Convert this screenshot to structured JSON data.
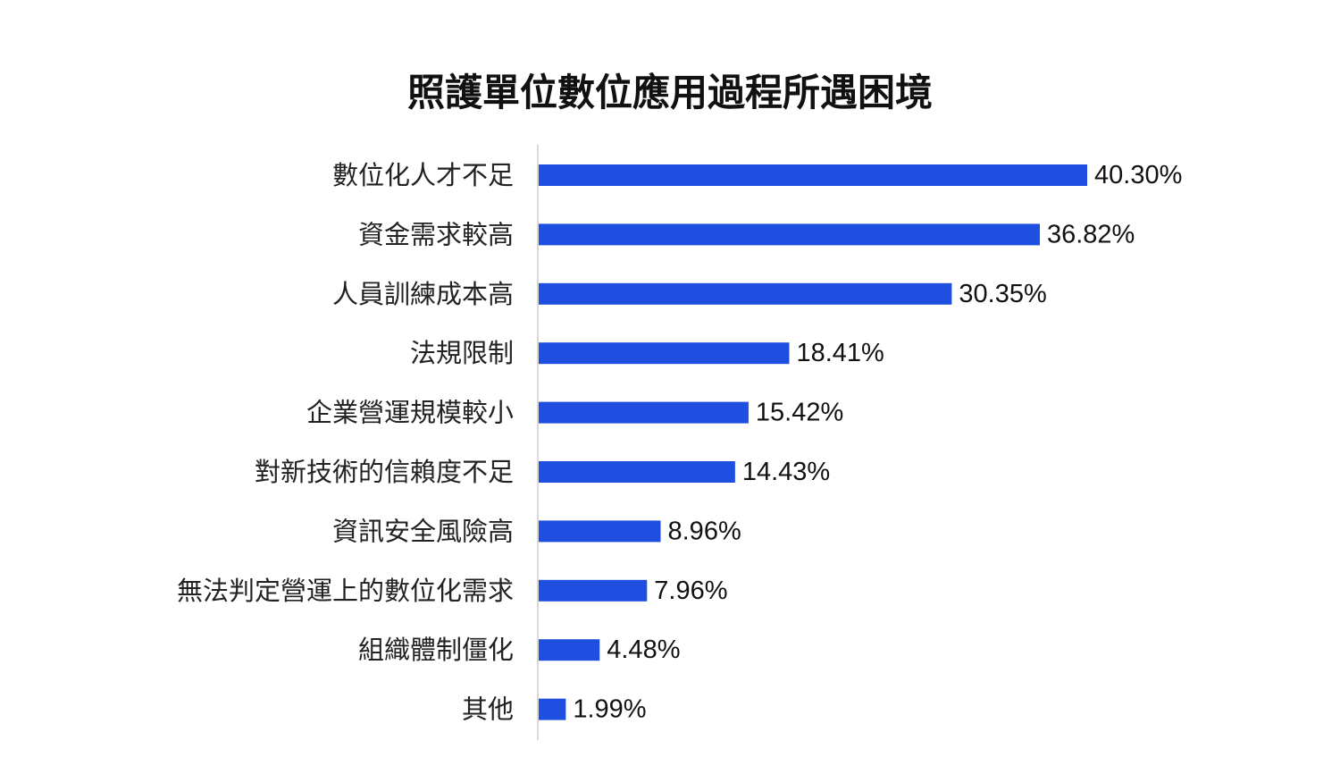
{
  "chart_data": {
    "type": "bar",
    "orientation": "horizontal",
    "title": "照護單位數位應用過程所遇困境",
    "xlabel": "",
    "ylabel": "",
    "categories": [
      "數位化人才不足",
      "資金需求較高",
      "人員訓練成本高",
      "法規限制",
      "企業營運規模較小",
      "對新技術的信賴度不足",
      "資訊安全風險高",
      "無法判定營運上的數位化需求",
      "組織體制僵化",
      "其他"
    ],
    "values": [
      40.3,
      36.82,
      30.35,
      18.41,
      15.42,
      14.43,
      8.96,
      7.96,
      4.48,
      1.99
    ],
    "value_labels": [
      "40.30%",
      "36.82%",
      "30.35%",
      "18.41%",
      "15.42%",
      "14.43%",
      "8.96%",
      "7.96%",
      "4.48%",
      "1.99%"
    ],
    "xlim": [
      0,
      45
    ],
    "bar_color": "#1f4fe0",
    "grid": false,
    "legend": "none"
  }
}
